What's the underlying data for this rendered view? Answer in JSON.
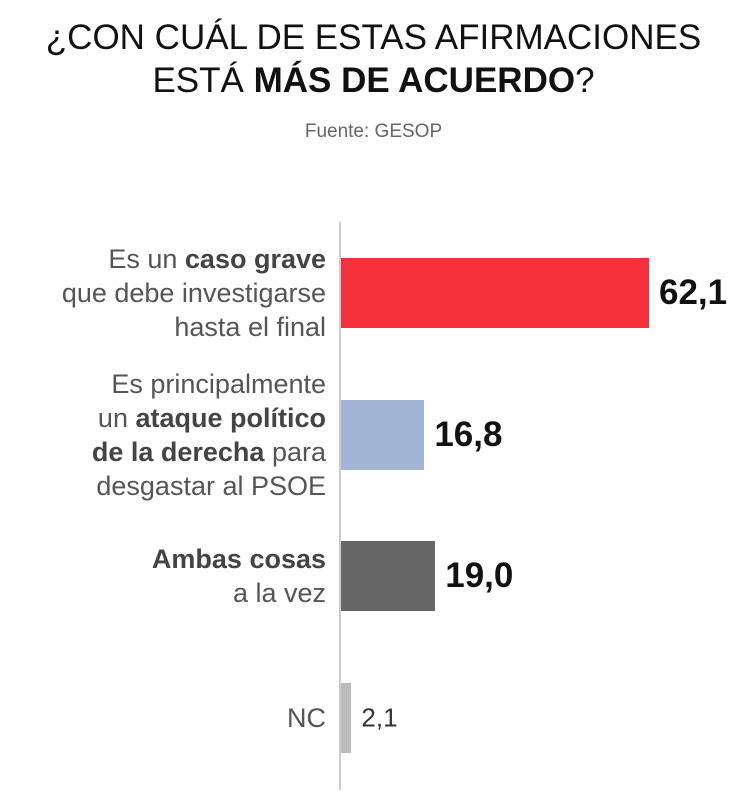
{
  "chart_data": {
    "type": "hbar",
    "title": "¿CON CUÁL DE ESTAS AFIRMACIONES\nESTÁ MÁS DE ACUERDO?",
    "title_emphasis": "MÁS DE ACUERDO",
    "subtitle": "Fuente: GESOP",
    "categories": [
      "Es un caso grave\nque debe investigarse\nhasta el final",
      "Es principalmente\nun ataque político\nde la derecha para\ndesgastar al PSOE",
      "Ambas cosas\na la vez",
      "NC"
    ],
    "emphasis": [
      "caso grave",
      "ataque político\nde la derecha",
      "Ambas cosas",
      null
    ],
    "values": [
      62.1,
      16.8,
      19.0,
      2.1
    ],
    "value_labels": [
      "62,1",
      "16,8",
      "19,0",
      "2,1"
    ],
    "colors": [
      "#f5303a",
      "#a3b5d6",
      "#666666",
      "#bbbbbb"
    ]
  }
}
